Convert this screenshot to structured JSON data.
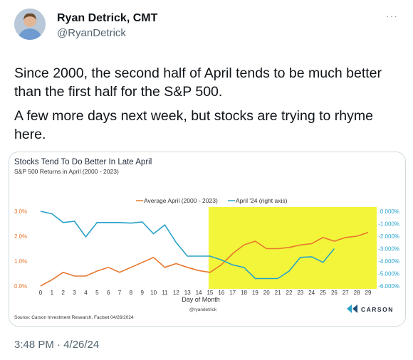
{
  "author": {
    "name": "Ryan Detrick, CMT",
    "handle": "@RyanDetrick",
    "avatar_icon": "user-avatar"
  },
  "more_label": "···",
  "tweet": {
    "paragraphs": [
      "Since 2000, the second half of April tends to be much better than the first half for the S&P 500.",
      "A few more days next week, but stocks are trying to rhyme here."
    ],
    "timestamp": "3:48 PM · 4/26/24"
  },
  "chart_data": {
    "type": "line",
    "title": "Stocks Tend To Do Better In Late April",
    "subtitle": "S&P 500 Returns in April (2000 - 2023)",
    "xlabel": "Day of Month",
    "x": [
      0,
      1,
      2,
      3,
      4,
      5,
      6,
      7,
      8,
      9,
      10,
      11,
      12,
      13,
      14,
      15,
      16,
      17,
      18,
      19,
      20,
      21,
      22,
      23,
      24,
      25,
      26,
      27,
      28,
      29
    ],
    "left_axis": {
      "ticks": [
        "0.0%",
        "1.0%",
        "2.0%",
        "3.0%"
      ],
      "ylim": [
        0,
        3
      ],
      "color": "#e8772e"
    },
    "right_axis": {
      "ticks": [
        "-6.000%",
        "-5.000%",
        "-4.000%",
        "-3.000%",
        "-2.000%",
        "-1.000%",
        "0.000%"
      ],
      "ylim": [
        -6,
        0
      ],
      "color": "#2aa3c9"
    },
    "series": [
      {
        "name": "Average April (2000 - 2023)",
        "axis": "left",
        "color": "#e8772e",
        "x": [
          0,
          1,
          2,
          3,
          4,
          5,
          6,
          7,
          8,
          9,
          10,
          11,
          12,
          13,
          14,
          15,
          16,
          17,
          18,
          19,
          20,
          21,
          22,
          23,
          24,
          25,
          26,
          27,
          28,
          29
        ],
        "values": [
          0.0,
          0.25,
          0.55,
          0.4,
          0.4,
          0.6,
          0.75,
          0.55,
          0.75,
          0.95,
          1.15,
          0.75,
          0.9,
          0.75,
          0.62,
          0.55,
          0.85,
          1.3,
          1.65,
          1.8,
          1.5,
          1.5,
          1.55,
          1.65,
          1.7,
          1.95,
          1.8,
          1.95,
          2.0,
          2.15
        ]
      },
      {
        "name": "April '24 (right axis)",
        "axis": "right",
        "color": "#2aa3c9",
        "x": [
          0,
          1,
          2,
          3,
          4,
          5,
          6,
          7,
          8,
          9,
          10,
          11,
          12,
          13,
          14,
          15,
          16,
          17,
          18,
          19,
          20,
          21,
          22,
          23,
          24,
          25,
          26
        ],
        "values": [
          0.0,
          -0.2,
          -0.9,
          -0.8,
          -2.05,
          -0.9,
          -0.9,
          -0.9,
          -0.95,
          -0.85,
          -1.8,
          -1.1,
          -2.5,
          -3.6,
          -3.6,
          -3.6,
          -3.9,
          -4.3,
          -4.5,
          -5.4,
          -5.4,
          -5.4,
          -4.8,
          -3.7,
          -3.65,
          -4.1,
          -3.0
        ]
      }
    ],
    "highlight": {
      "from_day": 15,
      "to_day": 29,
      "color": "#f2f53a"
    },
    "watermark": "@ryandetrick",
    "source": "Source: Carson Investment Research, Factset 04/26/2024",
    "brand": "CARSON"
  }
}
